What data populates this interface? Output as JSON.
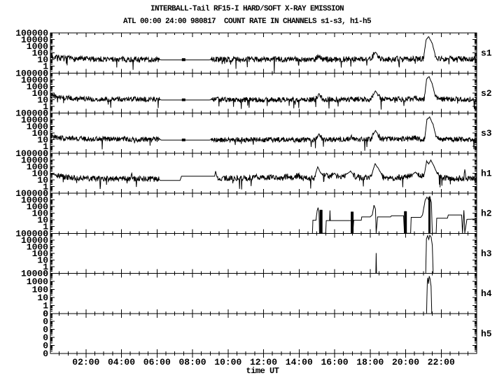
{
  "chart_data": {
    "type": "line",
    "title": "INTERBALL-Tail RF15-I HARD/SOFT X-RAY EMISSION",
    "subtitle": "ATL 00:00 24:00 980817  COUNT RATE IN CHANNELS s1-s3, h1-h5",
    "xlabel": "time UT",
    "x_range_hours": [
      0,
      24
    ],
    "x_major_hours": [
      2,
      4,
      6,
      8,
      10,
      12,
      14,
      16,
      18,
      20,
      22
    ],
    "x_tick_labels": [
      "02:00",
      "04:00",
      "06:00",
      "08:00",
      "10:00",
      "12:00",
      "14:00",
      "16:00",
      "18:00",
      "20:00",
      "22:00"
    ],
    "x_minor_step_hours": 0.5,
    "yscale": "log",
    "line_color": "#000000",
    "background_color": "#ffffff",
    "panels": [
      {
        "name": "s1",
        "label": "s1",
        "top_value": 100000,
        "intervals": 6,
        "ytick_labels": [
          "100000",
          "10000",
          "1000",
          "100",
          "10",
          "1",
          "0"
        ],
        "segments": [
          [
            [
              0,
              22
            ],
            [
              0.3,
              32
            ],
            [
              0.6,
              15
            ],
            [
              2,
              12
            ],
            [
              6.15,
              10
            ],
            [
              6.25,
              9
            ],
            [
              8.95,
              9
            ],
            [
              9.05,
              11
            ],
            [
              14.9,
              11
            ],
            [
              15.1,
              40
            ],
            [
              15.3,
              11
            ],
            [
              18.05,
              12
            ],
            [
              18.3,
              140
            ],
            [
              18.6,
              12
            ],
            [
              21.0,
              13
            ],
            [
              21.15,
              9000
            ],
            [
              21.3,
              28000
            ],
            [
              21.5,
              2600
            ],
            [
              21.65,
              70
            ],
            [
              21.8,
              14
            ],
            [
              24,
              12
            ]
          ]
        ],
        "noise": [
          [
            0,
            6.15,
            0.42
          ],
          [
            9.05,
            24,
            0.42
          ]
        ],
        "bars": [
          [
            7.5,
            6,
            16,
            5
          ]
        ]
      },
      {
        "name": "s2",
        "label": "s2",
        "top_value": 100000,
        "intervals": 6,
        "ytick_labels": [
          "100000",
          "10000",
          "1000",
          "100",
          "10",
          "1",
          "0"
        ],
        "segments": [
          [
            [
              0,
              40
            ],
            [
              0.4,
              24
            ],
            [
              1.5,
              14
            ],
            [
              6.15,
              11
            ],
            [
              6.25,
              9
            ],
            [
              8.95,
              9
            ],
            [
              9.05,
              10
            ],
            [
              14.9,
              10
            ],
            [
              15.12,
              90
            ],
            [
              15.35,
              10
            ],
            [
              16.85,
              10
            ],
            [
              16.95,
              22
            ],
            [
              17.1,
              11
            ],
            [
              18.05,
              11
            ],
            [
              18.3,
              220
            ],
            [
              18.6,
              11
            ],
            [
              20.3,
              12
            ],
            [
              20.55,
              18
            ],
            [
              20.8,
              11
            ],
            [
              21.05,
              12
            ],
            [
              21.18,
              13000
            ],
            [
              21.32,
              30000
            ],
            [
              21.5,
              2200
            ],
            [
              21.65,
              50
            ],
            [
              21.85,
              12
            ],
            [
              24,
              11
            ]
          ]
        ],
        "noise": [
          [
            0,
            6.15,
            0.38
          ],
          [
            9.05,
            24,
            0.38
          ]
        ],
        "bars": [
          [
            7.5,
            6,
            15,
            5
          ]
        ]
      },
      {
        "name": "s3",
        "label": "s3",
        "top_value": 100000,
        "intervals": 6,
        "ytick_labels": [
          "100000",
          "10000",
          "1000",
          "100",
          "10",
          "1",
          "0"
        ],
        "segments": [
          [
            [
              0,
              30
            ],
            [
              0.5,
              20
            ],
            [
              2,
              13
            ],
            [
              6.15,
              11
            ],
            [
              6.25,
              9
            ],
            [
              8.95,
              9
            ],
            [
              9.05,
              10
            ],
            [
              14.9,
              10
            ],
            [
              15.12,
              75
            ],
            [
              15.35,
              10
            ],
            [
              16.8,
              12
            ],
            [
              16.95,
              25
            ],
            [
              17.15,
              11
            ],
            [
              18.05,
              12
            ],
            [
              18.3,
              260
            ],
            [
              18.6,
              13
            ],
            [
              20.3,
              13
            ],
            [
              20.55,
              20
            ],
            [
              20.8,
              12
            ],
            [
              21.07,
              13
            ],
            [
              21.2,
              11000
            ],
            [
              21.35,
              26000
            ],
            [
              21.55,
              1800
            ],
            [
              21.7,
              40
            ],
            [
              21.9,
              12
            ],
            [
              24,
              11
            ]
          ]
        ],
        "noise": [
          [
            0,
            6.15,
            0.38
          ],
          [
            9.05,
            24,
            0.38
          ]
        ],
        "bars": [
          [
            7.5,
            6,
            15,
            5
          ]
        ]
      },
      {
        "name": "h1",
        "label": "h1",
        "top_value": 100000,
        "intervals": 6,
        "ytick_labels": [
          "100000",
          "10000",
          "1000",
          "100",
          "10",
          "1",
          "0"
        ],
        "segments": [
          [
            [
              0,
              90
            ],
            [
              0.3,
              55
            ],
            [
              1,
              22
            ],
            [
              2,
              16
            ],
            [
              4.5,
              15
            ],
            [
              4.58,
              90
            ],
            [
              4.66,
              15
            ],
            [
              6.1,
              12
            ],
            [
              6.2,
              8
            ],
            [
              7.3,
              8
            ],
            [
              7.38,
              35
            ],
            [
              9.25,
              35
            ],
            [
              9.3,
              200
            ],
            [
              9.4,
              16
            ],
            [
              11.3,
              18
            ],
            [
              11.6,
              25
            ],
            [
              12.2,
              18
            ],
            [
              12.6,
              28
            ],
            [
              13.0,
              16
            ],
            [
              13.35,
              32
            ],
            [
              13.6,
              16
            ],
            [
              13.95,
              45
            ],
            [
              14.2,
              18
            ],
            [
              14.85,
              16
            ],
            [
              15.05,
              900
            ],
            [
              15.2,
              120
            ],
            [
              15.4,
              40
            ],
            [
              15.55,
              90
            ],
            [
              15.7,
              25
            ],
            [
              16.0,
              95
            ],
            [
              16.2,
              28
            ],
            [
              16.55,
              45
            ],
            [
              16.9,
              190
            ],
            [
              17.15,
              30
            ],
            [
              17.5,
              20
            ],
            [
              18.05,
              28
            ],
            [
              18.28,
              2600
            ],
            [
              18.5,
              350
            ],
            [
              18.75,
              22
            ],
            [
              19.3,
              16
            ],
            [
              20.3,
              45
            ],
            [
              20.55,
              140
            ],
            [
              20.8,
              35
            ],
            [
              21.05,
              60
            ],
            [
              21.18,
              6500
            ],
            [
              21.3,
              2500
            ],
            [
              21.42,
              9000
            ],
            [
              21.6,
              1000
            ],
            [
              21.8,
              60
            ],
            [
              22.0,
              22
            ],
            [
              22.5,
              16
            ],
            [
              23.28,
              16
            ],
            [
              23.33,
              420
            ],
            [
              23.4,
              16
            ],
            [
              24,
              16
            ]
          ]
        ],
        "noise": [
          [
            0,
            6.1,
            0.42
          ],
          [
            9.4,
            24,
            0.42
          ]
        ],
        "bars": []
      },
      {
        "name": "h2",
        "label": "h2",
        "top_value": 100000,
        "intervals": 6,
        "ytick_labels": [
          "100000",
          "10000",
          "1000",
          "100",
          "10",
          "1",
          "0"
        ],
        "segments": [
          [
            [
              14.75,
              0
            ],
            [
              14.78,
              9
            ],
            [
              14.95,
              9
            ],
            [
              15.02,
              250
            ],
            [
              15.07,
              700
            ],
            [
              15.12,
              150
            ],
            [
              15.15,
              0
            ],
            [
              15.2,
              0
            ],
            [
              15.23,
              320
            ],
            [
              15.27,
              0
            ],
            [
              15.5,
              0
            ],
            [
              15.53,
              8
            ],
            [
              15.72,
              8
            ],
            [
              15.74,
              260
            ],
            [
              15.76,
              8
            ],
            [
              16.2,
              8
            ],
            [
              16.95,
              8
            ],
            [
              16.98,
              170
            ],
            [
              17.02,
              0
            ],
            [
              17.08,
              9
            ],
            [
              17.5,
              9
            ],
            [
              17.53,
              28
            ],
            [
              18.0,
              28
            ],
            [
              18.12,
              55
            ],
            [
              18.22,
              1600
            ],
            [
              18.3,
              400
            ],
            [
              18.34,
              0
            ],
            [
              18.42,
              28
            ],
            [
              19.15,
              28
            ],
            [
              19.2,
              42
            ],
            [
              19.88,
              42
            ],
            [
              19.93,
              0
            ],
            [
              19.98,
              210
            ],
            [
              20.03,
              0
            ],
            [
              20.28,
              0
            ],
            [
              20.31,
              24
            ],
            [
              20.85,
              24
            ],
            [
              20.95,
              55
            ],
            [
              21.1,
              9000
            ],
            [
              21.2,
              26000
            ],
            [
              21.3,
              9000
            ],
            [
              21.36,
              30000
            ],
            [
              21.45,
              4000
            ],
            [
              21.5,
              0
            ],
            [
              21.72,
              0
            ],
            [
              21.75,
              18
            ],
            [
              22.35,
              18
            ],
            [
              22.4,
              55
            ],
            [
              23.15,
              55
            ],
            [
              23.2,
              0
            ],
            [
              23.28,
              280
            ],
            [
              23.33,
              0
            ],
            [
              23.45,
              12
            ],
            [
              24,
              14
            ]
          ]
        ],
        "noise": [],
        "bars": [
          [
            15.24,
            0,
            320,
            4
          ],
          [
            16.99,
            0,
            170,
            4
          ],
          [
            19.99,
            0,
            200,
            4
          ],
          [
            21.34,
            0,
            28000,
            3
          ]
        ]
      },
      {
        "name": "h3",
        "label": "h3",
        "top_value": 100000,
        "intervals": 6,
        "ytick_labels": [
          "100000",
          "10000",
          "1000",
          "100",
          "10",
          "1",
          "0"
        ],
        "segments": [
          [
            [
              18.32,
              0
            ],
            [
              18.34,
              110
            ],
            [
              18.36,
              0
            ]
          ],
          [
            [
              21.13,
              0
            ],
            [
              21.17,
              15000
            ],
            [
              21.24,
              45000
            ],
            [
              21.3,
              12000
            ],
            [
              21.36,
              50000
            ],
            [
              21.44,
              25000
            ],
            [
              21.5,
              1500
            ],
            [
              21.55,
              0
            ]
          ]
        ],
        "noise": [],
        "bars": []
      },
      {
        "name": "h4",
        "label": "h4",
        "top_value": 10000,
        "intervals": 5,
        "ytick_labels": [
          "10000",
          "1000",
          "100",
          "10",
          "1",
          "0"
        ],
        "segments": [
          [
            [
              21.18,
              0
            ],
            [
              21.22,
              900
            ],
            [
              21.25,
              2800
            ],
            [
              21.29,
              500
            ],
            [
              21.33,
              4500
            ],
            [
              21.37,
              2200
            ],
            [
              21.43,
              250
            ],
            [
              21.47,
              0
            ]
          ]
        ],
        "noise": [],
        "bars": []
      },
      {
        "name": "h5",
        "label": "h5",
        "top_value": 10000,
        "intervals": 5,
        "ytick_labels": [
          "0",
          "0",
          "0",
          "0",
          "0",
          "0"
        ],
        "segments": [],
        "noise": [],
        "bars": []
      }
    ]
  }
}
